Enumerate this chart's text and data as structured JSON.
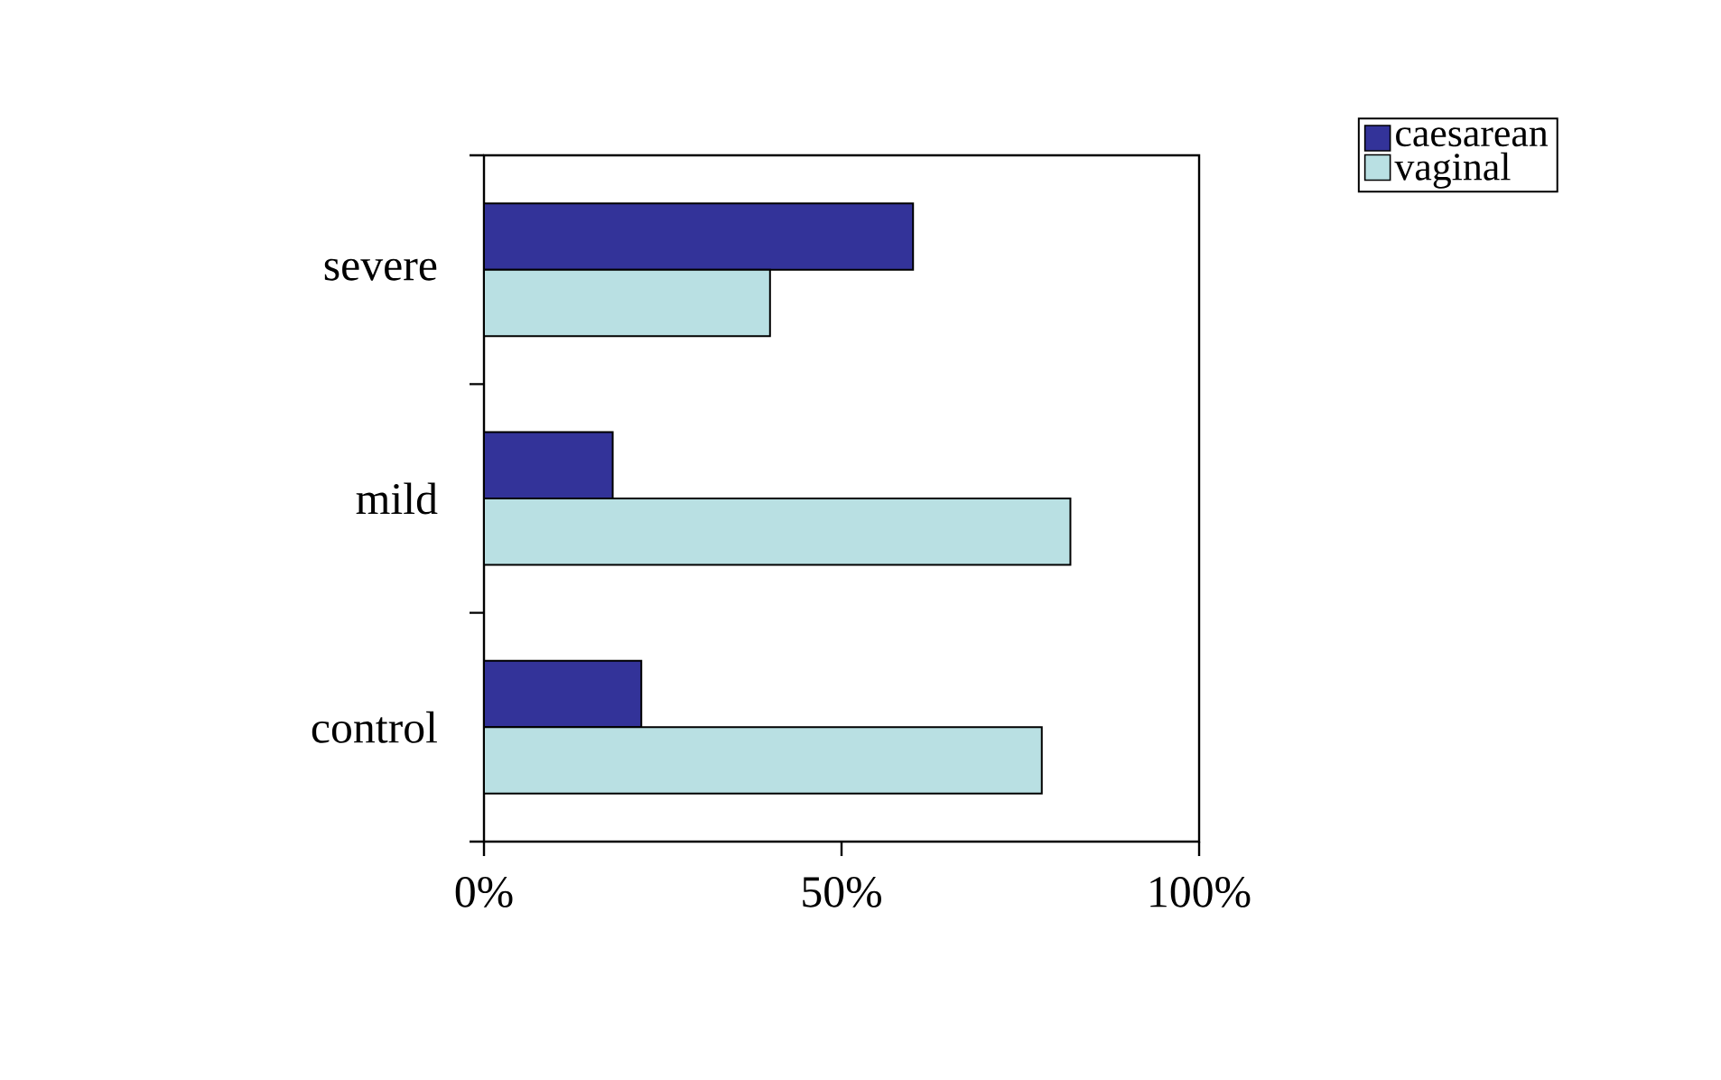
{
  "chart_data": {
    "type": "bar",
    "orientation": "horizontal",
    "categories": [
      "severe",
      "mild",
      "control"
    ],
    "series": [
      {
        "name": "caesarean",
        "color": "#333399",
        "values": [
          60,
          18,
          22
        ]
      },
      {
        "name": "vaginal",
        "color": "#b9e0e3",
        "values": [
          40,
          82,
          78
        ]
      }
    ],
    "xlim": [
      0,
      100
    ],
    "xticks": [
      {
        "value": 0,
        "label": "0%"
      },
      {
        "value": 50,
        "label": "50%"
      },
      {
        "value": 100,
        "label": "100%"
      }
    ],
    "legend": "top right",
    "grid": false
  }
}
